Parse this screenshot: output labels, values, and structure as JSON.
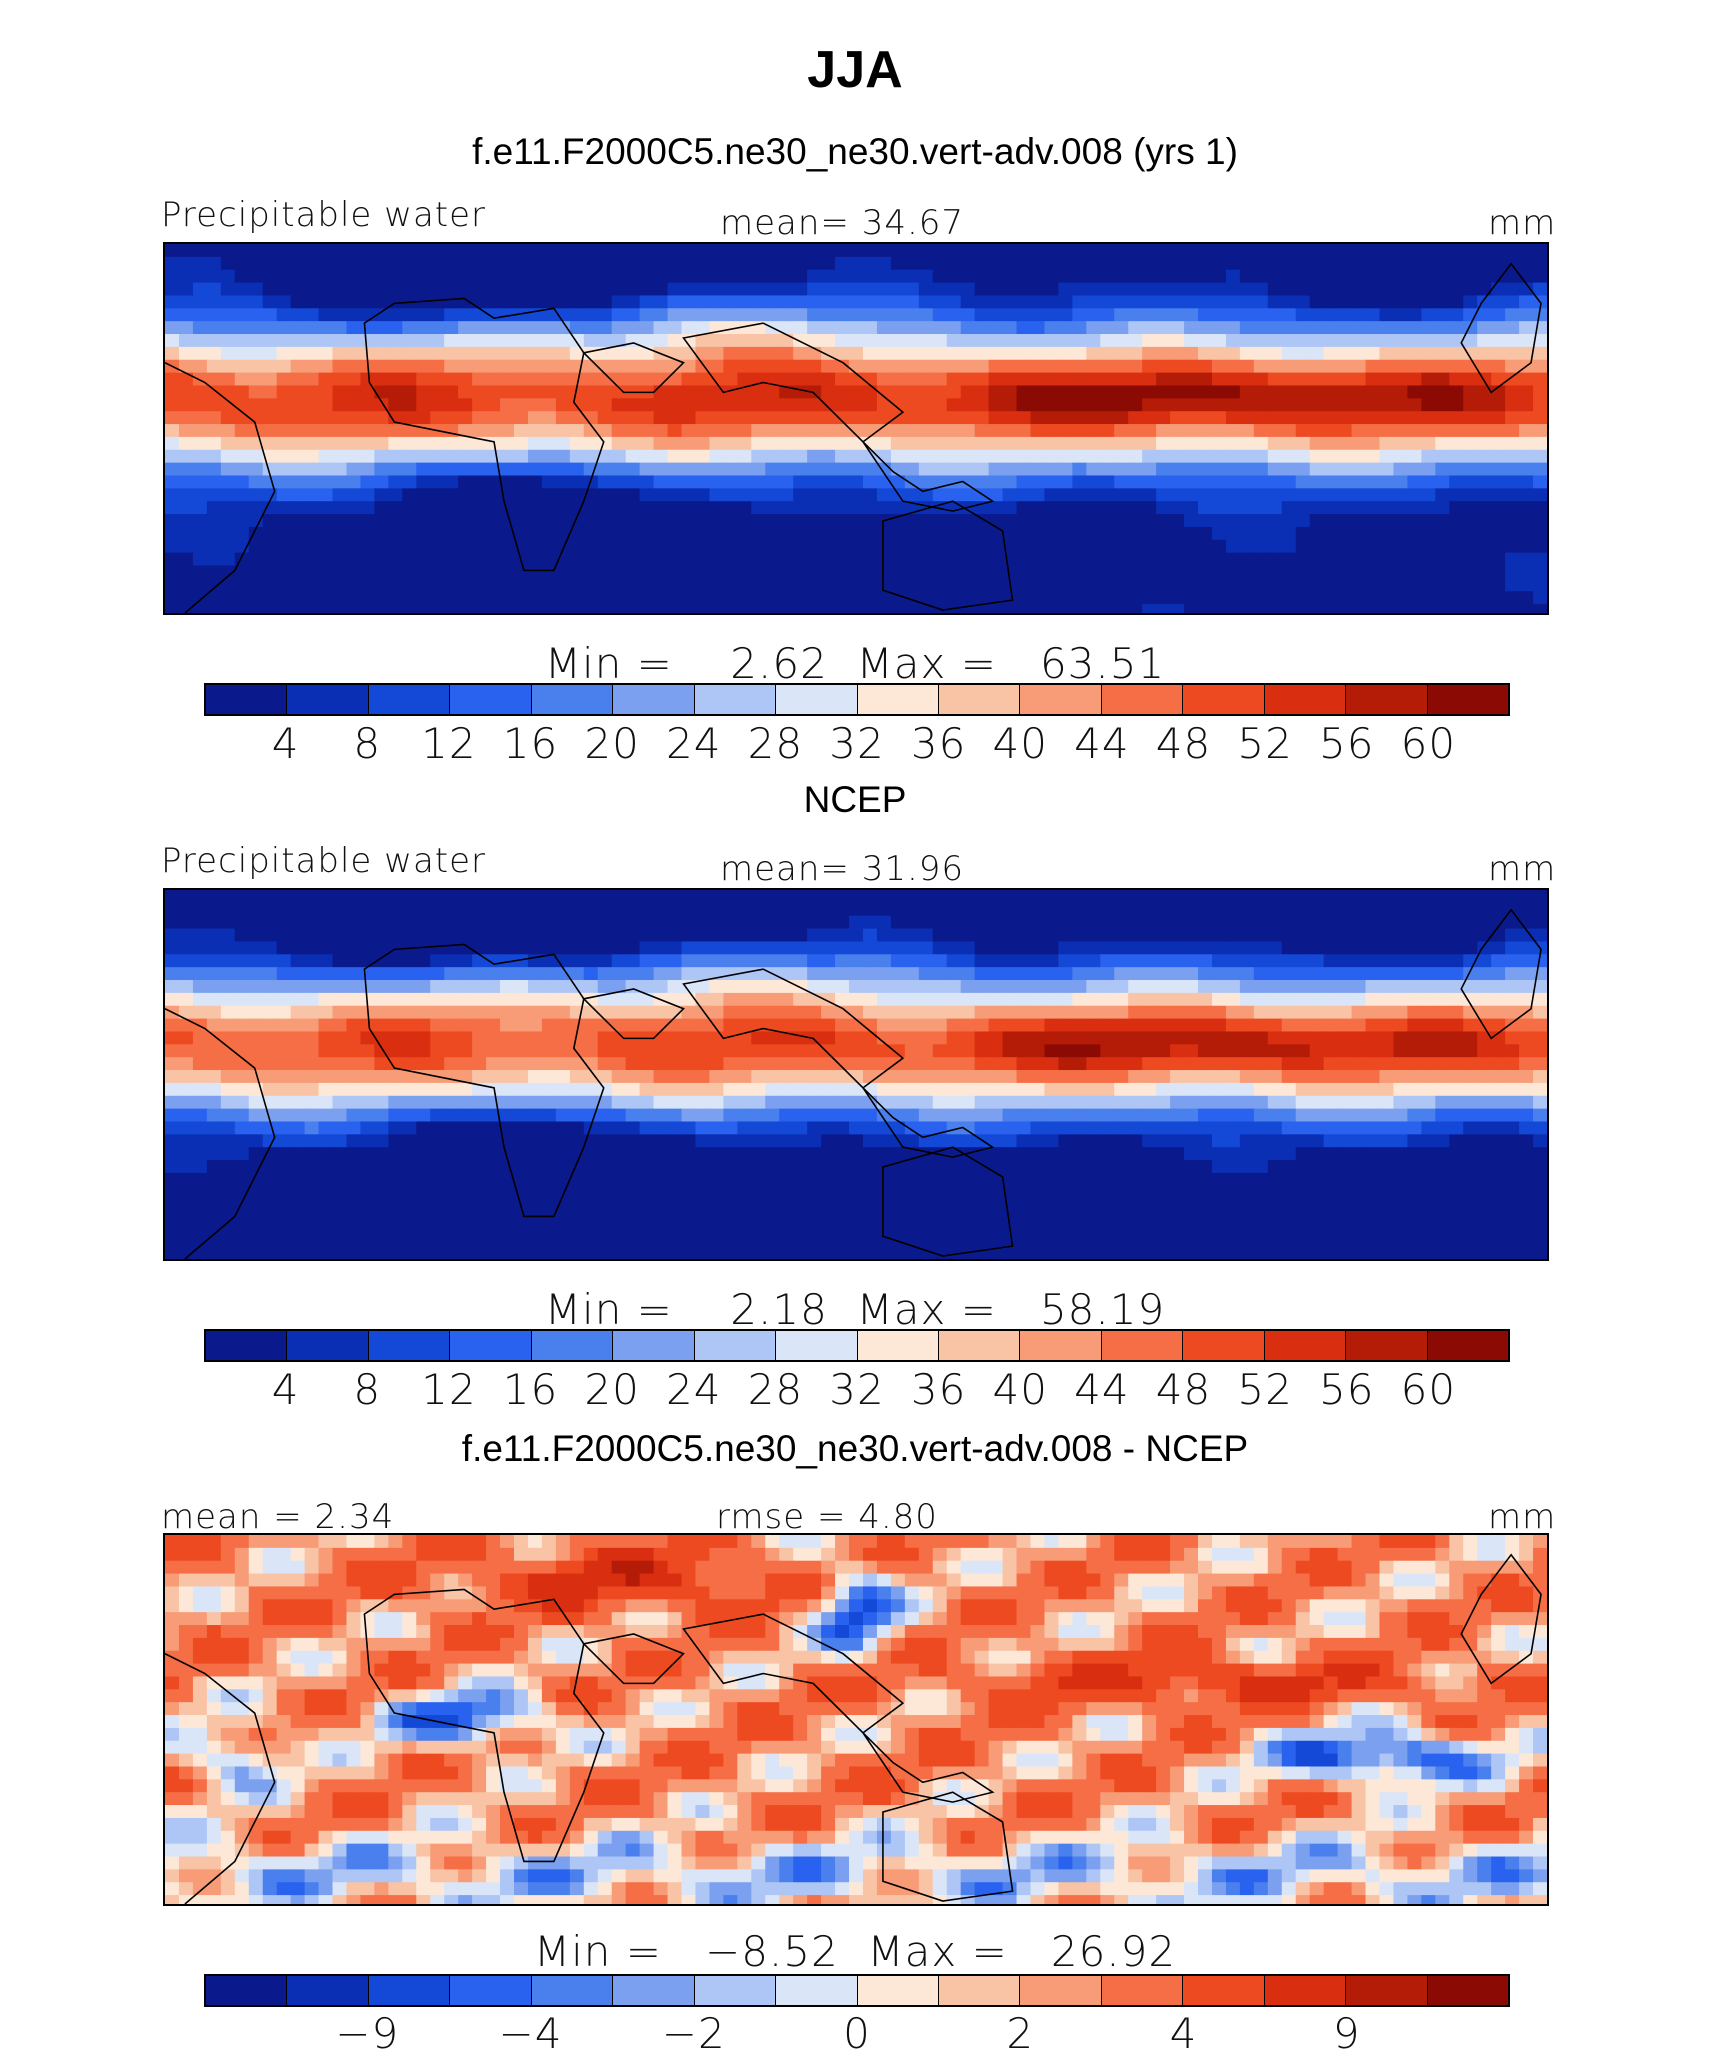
{
  "title": "JJA",
  "chart_data": [
    {
      "type": "heatmap",
      "panel_title": "f.e11.F2000C5.ne30_ne30.vert-adv.008 (yrs 1)",
      "left_label": "Precipitable water",
      "center_label": "mean=   34.67",
      "right_label": "mm",
      "stats": {
        "min_label": "Min",
        "min": "2.62",
        "max_label": "Max",
        "max": "63.51"
      },
      "colorbar": {
        "ticks": [
          "4",
          "8",
          "12",
          "16",
          "20",
          "24",
          "28",
          "32",
          "36",
          "40",
          "44",
          "48",
          "52",
          "56",
          "60"
        ],
        "tick_positions": "between-all"
      },
      "field": "mean"
    },
    {
      "type": "heatmap",
      "panel_title": "NCEP",
      "left_label": "Precipitable water",
      "center_label": "mean=   31.96",
      "right_label": "mm",
      "stats": {
        "min_label": "Min",
        "min": "2.18",
        "max_label": "Max",
        "max": "58.19"
      },
      "colorbar": {
        "ticks": [
          "4",
          "8",
          "12",
          "16",
          "20",
          "24",
          "28",
          "32",
          "36",
          "40",
          "44",
          "48",
          "52",
          "56",
          "60"
        ],
        "tick_positions": "between-all"
      },
      "field": "mean"
    },
    {
      "type": "heatmap",
      "panel_title": "f.e11.F2000C5.ne30_ne30.vert-adv.008 - NCEP",
      "left_label": "mean =    2.34",
      "center_label": "rmse =    4.80",
      "right_label": "mm",
      "stats": {
        "min_label": "Min",
        "min": "−8.52",
        "max_label": "Max",
        "max": "26.92"
      },
      "colorbar": {
        "ticks": [
          "−9",
          "−4",
          "−2",
          "0",
          "2",
          "4",
          "9"
        ],
        "tick_positions": "sparse"
      },
      "field": "diff"
    }
  ],
  "colors": [
    "#0a1a8c",
    "#0a2fb4",
    "#1448d6",
    "#2a62f0",
    "#4a7fee",
    "#7ba0ef",
    "#aec6f5",
    "#dae6f8",
    "#fde8d8",
    "#f9c3a5",
    "#f79c77",
    "#f56e45",
    "#ee4a22",
    "#d92e10",
    "#b51c08",
    "#8c0a04"
  ]
}
